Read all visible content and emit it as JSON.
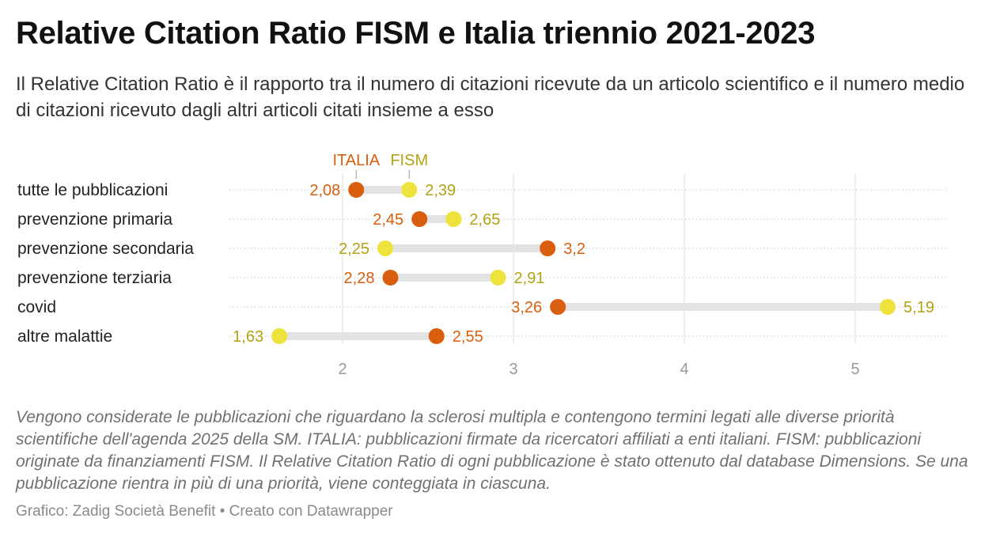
{
  "title": "Relative Citation Ratio FISM e Italia triennio 2021-2023",
  "subtitle": "Il Relative Citation Ratio è il rapporto tra il numero di citazioni ricevute da un articolo scientifico e il numero medio di citazioni ricevuto dagli altri articoli citati insieme a esso",
  "notes": "Vengono considerate le pubblicazioni che riguardano la sclerosi multipla e contengono termini legati alle diverse priorità scientifiche dell'agenda 2025 della SM. ITALIA: pubblicazioni firmate da ricercatori affiliati a enti italiani. FISM: pubblicazioni originate da finanziamenti FISM. Il Relative Citation Ratio di ogni pubblicazione è stato ottenuto dal database Dimensions. Se una pubblicazione rientra in più di una priorità, viene conteggiata in ciascuna.",
  "byline": "Grafico: Zadig Società Benefit • Creato con Datawrapper",
  "chart_data": {
    "type": "dot-range",
    "categories": [
      "tutte le pubblicazioni",
      "prevenzione primaria",
      "prevenzione secondaria",
      "prevenzione terziaria",
      "covid",
      "altre malattie"
    ],
    "series": [
      {
        "name": "ITALIA",
        "color": "#d95f0e",
        "values": [
          2.08,
          2.45,
          3.2,
          2.28,
          3.26,
          2.55
        ],
        "labels": [
          "2,08",
          "2,45",
          "3,2",
          "2,28",
          "3,26",
          "2,55"
        ]
      },
      {
        "name": "FISM",
        "color": "#ede33c",
        "label_color": "#b3a313",
        "values": [
          2.39,
          2.65,
          2.25,
          2.91,
          5.19,
          1.63
        ],
        "labels": [
          "2,39",
          "2,65",
          "2,25",
          "2,91",
          "5,19",
          "1,63"
        ]
      }
    ],
    "xticks": [
      2,
      3,
      4,
      5
    ],
    "xtick_labels": [
      "2",
      "3",
      "4",
      "5"
    ],
    "xlim": [
      1.45,
      5.55
    ],
    "grid": true,
    "legend": "direct labels above first row"
  }
}
